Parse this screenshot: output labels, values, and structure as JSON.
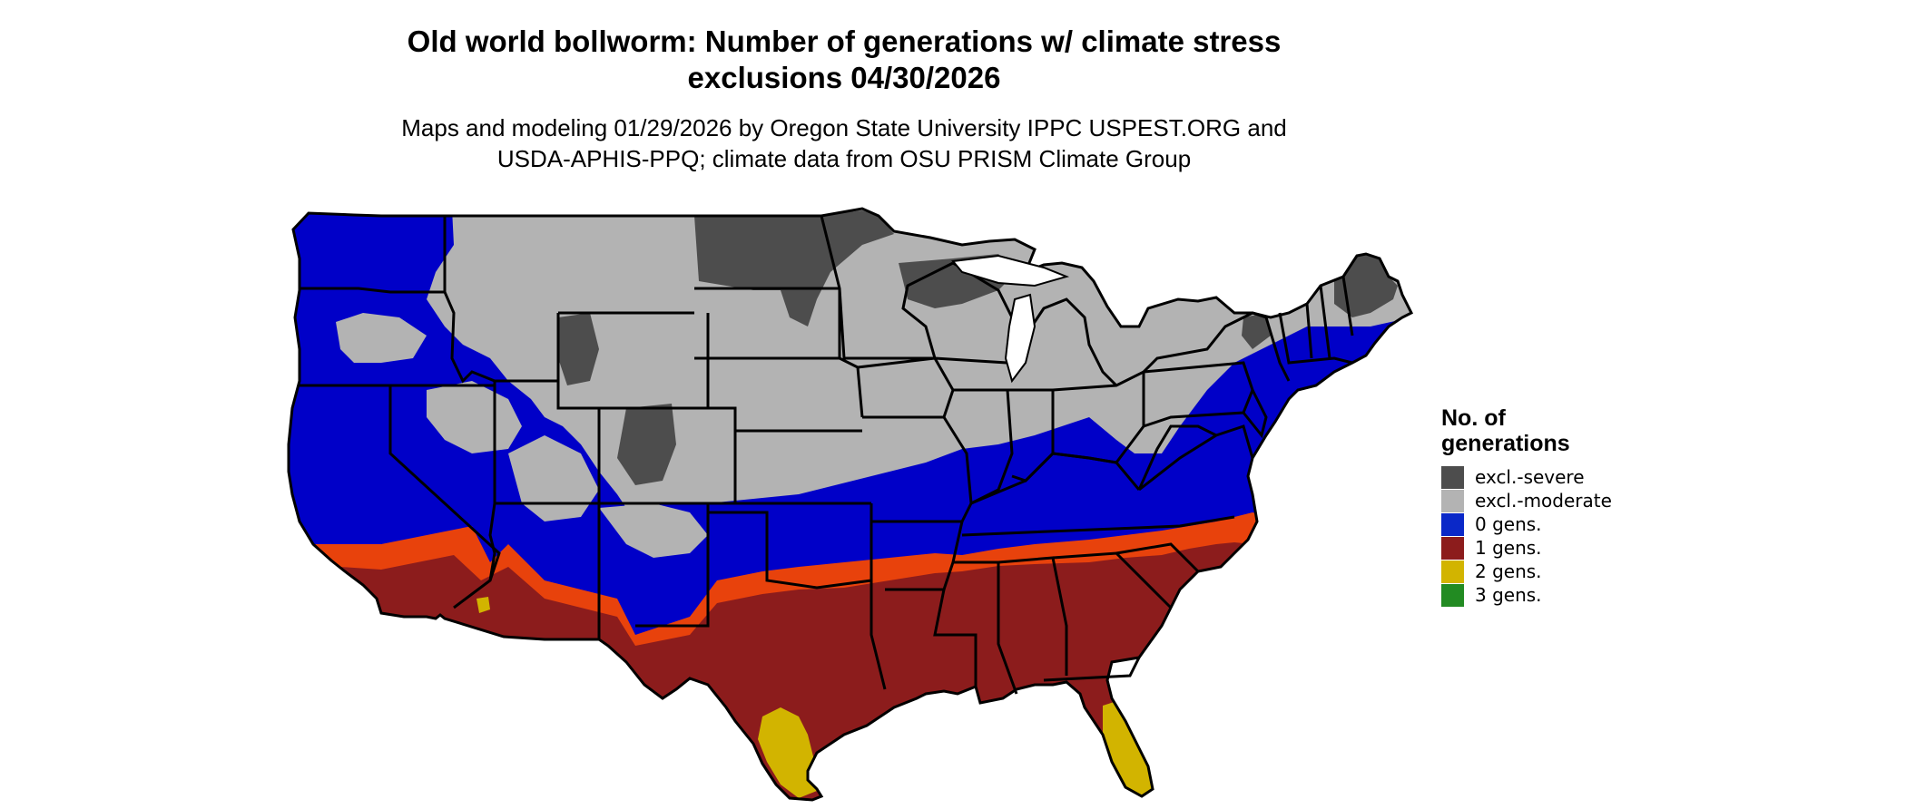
{
  "title_line1": "Old world bollworm: Number of generations w/ climate stress",
  "title_line2": "exclusions 04/30/2026",
  "subtitle_line1": "Maps and modeling 01/29/2026 by Oregon State University IPPC USPEST.ORG and",
  "subtitle_line2": "USDA-APHIS-PPQ; climate data from OSU PRISM Climate Group",
  "legend": {
    "title_line1": "No. of",
    "title_line2": "generations",
    "items": [
      {
        "label": "excl.-severe",
        "color": "#4d4d4d"
      },
      {
        "label": "excl.-moderate",
        "color": "#b3b3b3"
      },
      {
        "label": "0 gens.",
        "color": "#0a28c8"
      },
      {
        "label": "1 gens.",
        "color": "#8c1c1c"
      },
      {
        "label": "2 gens.",
        "color": "#d2b400"
      },
      {
        "label": "3 gens.",
        "color": "#228b22"
      }
    ]
  },
  "colors": {
    "severe": "#4d4d4d",
    "moderate": "#b3b3b3",
    "zero": "#0000c8",
    "one": "#8c1c1c",
    "one_edge": "#e8420c",
    "two": "#d2b400",
    "water": "#ffffff",
    "border": "#000000"
  }
}
